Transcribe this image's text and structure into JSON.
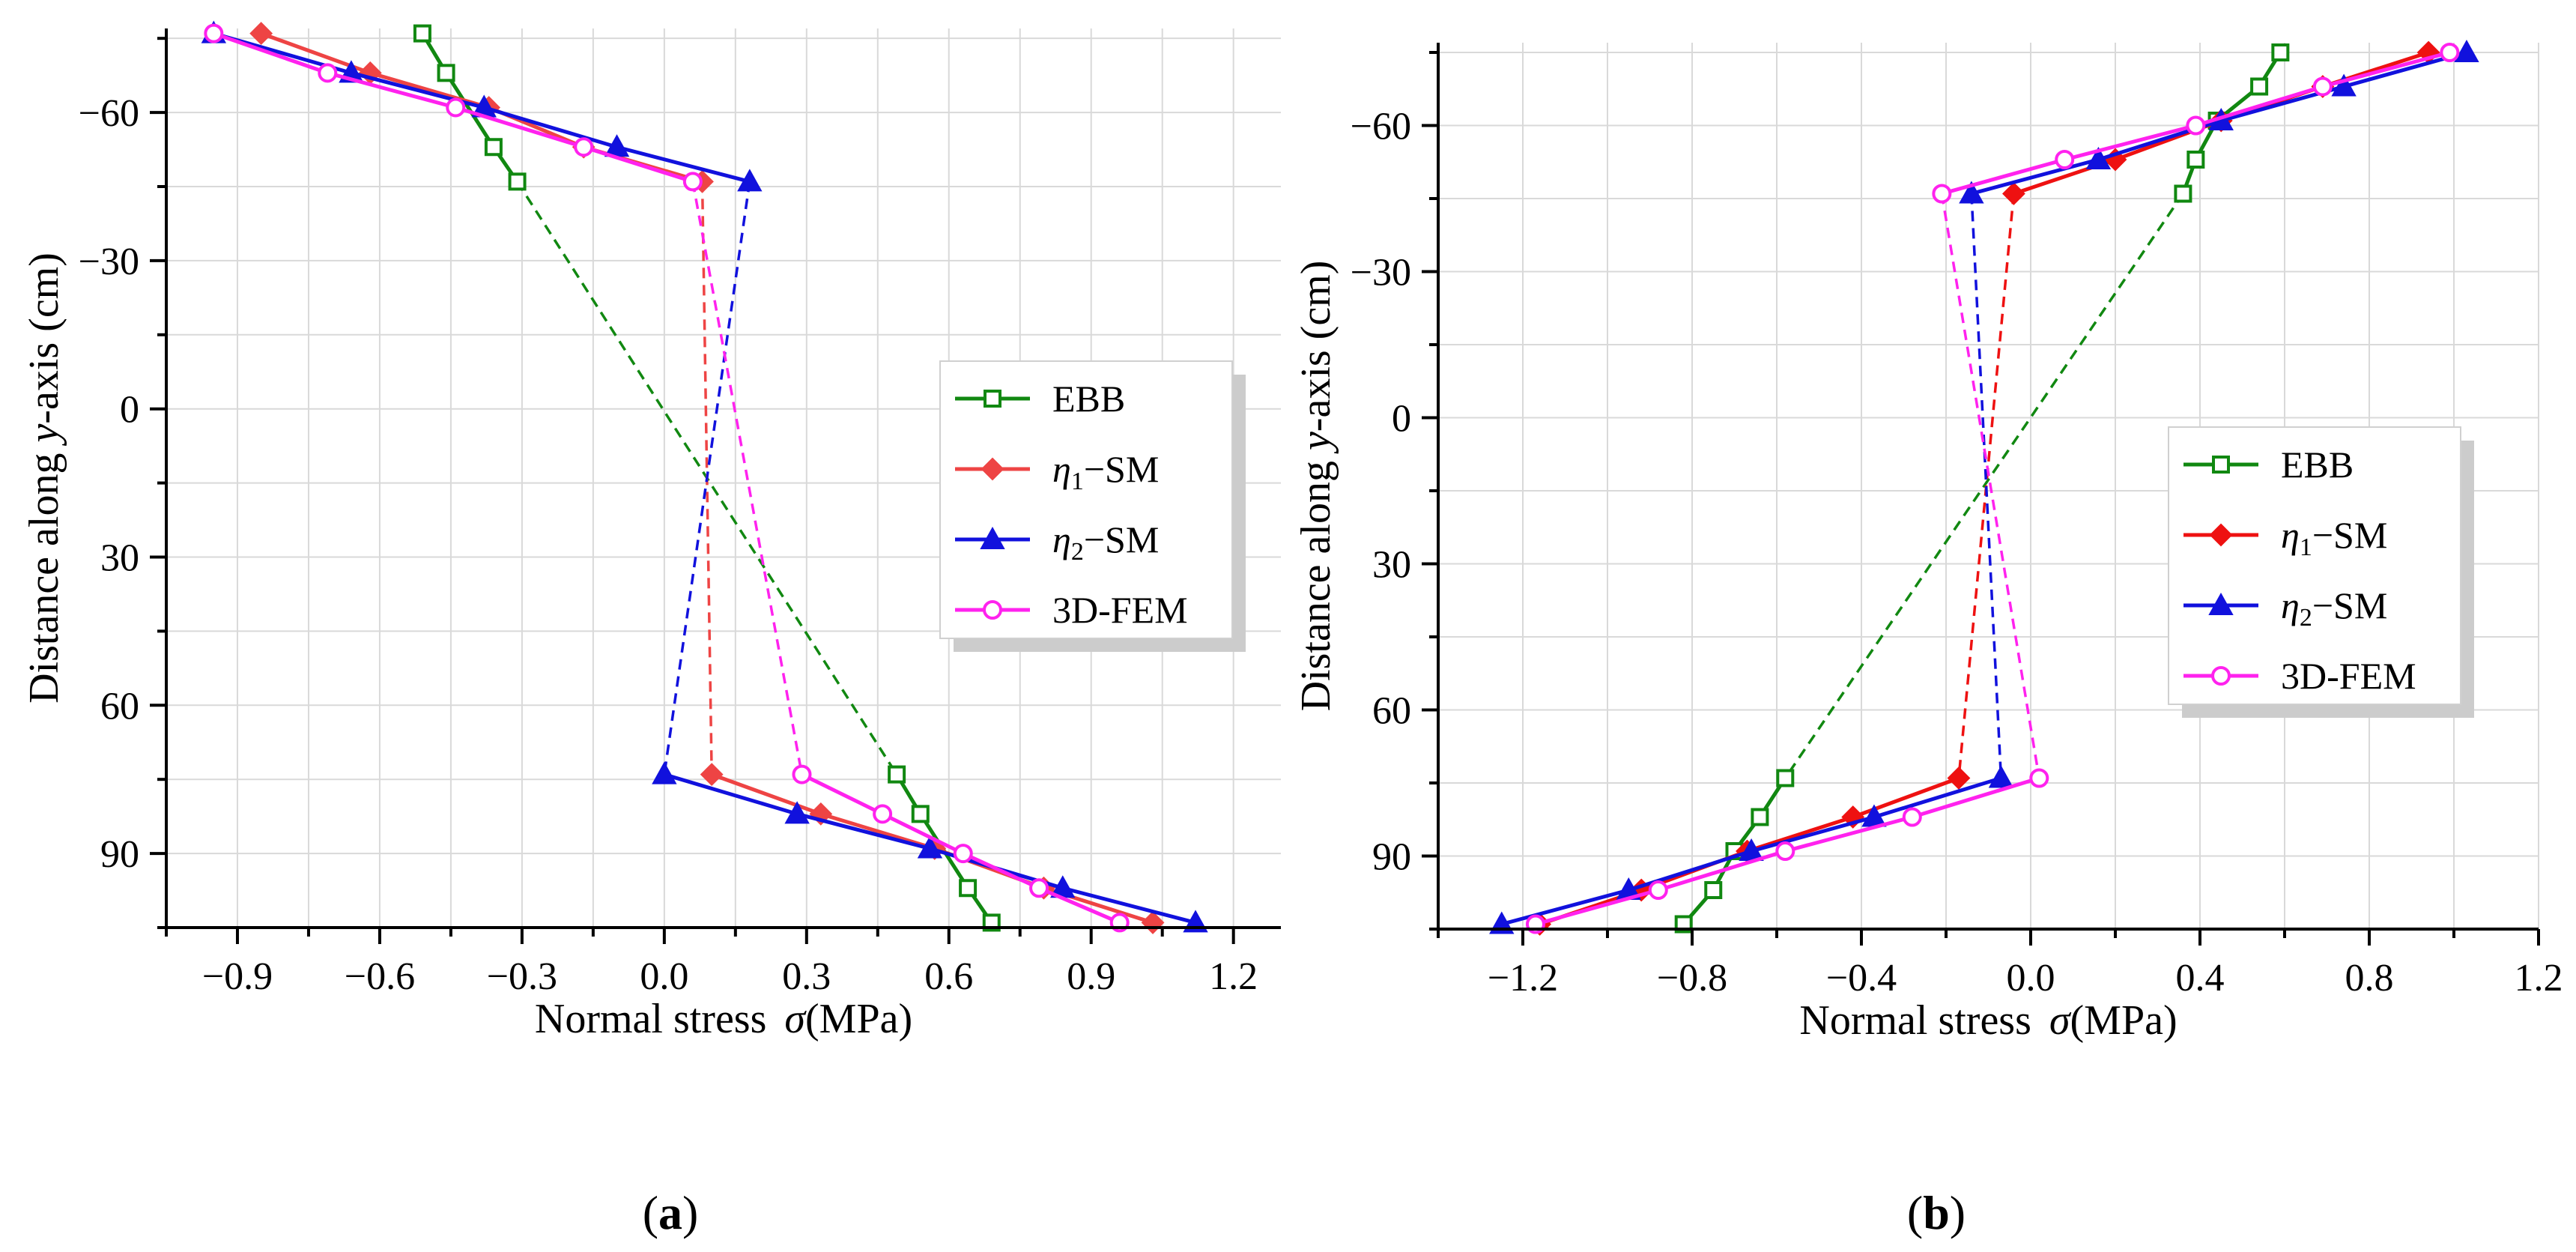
{
  "figure": {
    "panels": [
      {
        "label_open": "(",
        "label_letter": "a",
        "label_close": ")"
      },
      {
        "label_open": "(",
        "label_letter": "b",
        "label_close": ")"
      }
    ]
  },
  "chart_data": [
    {
      "type": "line",
      "panel": "a",
      "xlabel": "Normal stress",
      "xlabel_symbol": "σ",
      "xlabel_unit": "(MPa)",
      "ylabel_prefix": "Distance along ",
      "ylabel_var": "y",
      "ylabel_suffix": "-axis (cm)",
      "xlim": [
        -1.05,
        1.3
      ],
      "ylim": [
        105,
        -77
      ],
      "xticks": [
        -0.9,
        -0.6,
        -0.3,
        0.0,
        0.3,
        0.6,
        0.9,
        1.2
      ],
      "xtick_labels": [
        "−0.9",
        "−0.6",
        "−0.3",
        "0.0",
        "0.3",
        "0.6",
        "0.9",
        "1.2"
      ],
      "yticks": [
        -60,
        -30,
        0,
        30,
        60,
        90
      ],
      "ytick_labels": [
        "−60",
        "−30",
        "0",
        "30",
        "60",
        "90"
      ],
      "grid": true,
      "legend_position": "center-right",
      "series": [
        {
          "name": "EBB",
          "legend_greek": "",
          "legend_sub": "",
          "legend_text": "EBB",
          "color": "#118811",
          "marker": "square-open",
          "top": {
            "x": [
              -0.51,
              -0.46,
              -0.36,
              -0.31
            ],
            "y": [
              -76,
              -68,
              -53,
              -46
            ]
          },
          "bottom": {
            "x": [
              0.49,
              0.54,
              0.64,
              0.69
            ],
            "y": [
              74,
              82,
              97,
              104
            ]
          },
          "dash": {
            "x": [
              -0.31,
              0.49
            ],
            "y": [
              -46,
              74
            ]
          }
        },
        {
          "name": "η1−SM",
          "legend_greek": "η",
          "legend_sub": "1",
          "legend_text": "−SM",
          "color": "#ee4444",
          "marker": "diamond-filled",
          "top": {
            "x": [
              -0.85,
              -0.62,
              -0.37,
              -0.17,
              0.08
            ],
            "y": [
              -76,
              -68,
              -61,
              -53,
              -46
            ]
          },
          "bottom": {
            "x": [
              0.1,
              0.33,
              0.57,
              0.8,
              1.03
            ],
            "y": [
              74,
              82,
              89,
              97,
              104
            ]
          },
          "dash": {
            "x": [
              0.08,
              0.1
            ],
            "y": [
              -46,
              74
            ]
          }
        },
        {
          "name": "η2−SM",
          "legend_greek": "η",
          "legend_sub": "2",
          "legend_text": "−SM",
          "color": "#1111dd",
          "marker": "triangle-filled",
          "top": {
            "x": [
              -0.95,
              -0.66,
              -0.38,
              -0.1,
              0.18
            ],
            "y": [
              -76,
              -68,
              -61,
              -53,
              -46
            ]
          },
          "bottom": {
            "x": [
              0.0,
              0.28,
              0.56,
              0.84,
              1.12
            ],
            "y": [
              74,
              82,
              89,
              97,
              104
            ]
          },
          "dash": {
            "x": [
              0.18,
              0.0
            ],
            "y": [
              -46,
              74
            ]
          }
        },
        {
          "name": "3D-FEM",
          "legend_greek": "",
          "legend_sub": "",
          "legend_text": "3D-FEM",
          "color": "#ff22ee",
          "marker": "circle-open",
          "top": {
            "x": [
              -0.95,
              -0.71,
              -0.44,
              -0.17,
              0.06
            ],
            "y": [
              -76,
              -68,
              -61,
              -53,
              -46
            ]
          },
          "bottom": {
            "x": [
              0.29,
              0.46,
              0.63,
              0.79,
              0.96
            ],
            "y": [
              74,
              82,
              90,
              97,
              104
            ]
          },
          "dash": {
            "x": [
              0.06,
              0.29
            ],
            "y": [
              -46,
              74
            ]
          }
        }
      ]
    },
    {
      "type": "line",
      "panel": "b",
      "xlabel": "Normal stress",
      "xlabel_symbol": "σ",
      "xlabel_unit": "(MPa)",
      "ylabel_prefix": "Distance along ",
      "ylabel_var": "y",
      "ylabel_suffix": "-axis (cm)",
      "xlim": [
        -1.4,
        1.2
      ],
      "ylim": [
        105,
        -77
      ],
      "xticks": [
        -1.2,
        -0.8,
        -0.4,
        0.0,
        0.4,
        0.8,
        1.2
      ],
      "xtick_labels": [
        "−1.2",
        "−0.8",
        "−0.4",
        "0.0",
        "0.4",
        "0.8",
        "1.2"
      ],
      "yticks": [
        -60,
        -30,
        0,
        30,
        60,
        90
      ],
      "ytick_labels": [
        "−60",
        "−30",
        "0",
        "30",
        "60",
        "90"
      ],
      "grid": true,
      "legend_position": "right",
      "series": [
        {
          "name": "EBB",
          "legend_greek": "",
          "legend_sub": "",
          "legend_text": "EBB",
          "color": "#118811",
          "marker": "square-open",
          "top": {
            "x": [
              0.59,
              0.54,
              0.44,
              0.39,
              0.36
            ],
            "y": [
              -75,
              -68,
              -61,
              -53,
              -46
            ]
          },
          "bottom": {
            "x": [
              -0.58,
              -0.64,
              -0.7,
              -0.75,
              -0.82
            ],
            "y": [
              74,
              82,
              89,
              97,
              104
            ]
          },
          "dash": {
            "x": [
              0.36,
              -0.58
            ],
            "y": [
              -46,
              74
            ]
          }
        },
        {
          "name": "η1−SM",
          "legend_greek": "η",
          "legend_sub": "1",
          "legend_text": "−SM",
          "color": "#ee1111",
          "marker": "diamond-filled",
          "top": {
            "x": [
              0.94,
              0.69,
              0.45,
              0.2,
              -0.04
            ],
            "y": [
              -75,
              -68,
              -61,
              -53,
              -46
            ]
          },
          "bottom": {
            "x": [
              -0.17,
              -0.42,
              -0.67,
              -0.92,
              -1.16
            ],
            "y": [
              74,
              82,
              89,
              97,
              104
            ]
          },
          "dash": {
            "x": [
              -0.04,
              -0.17
            ],
            "y": [
              -46,
              74
            ]
          }
        },
        {
          "name": "η2−SM",
          "legend_greek": "η",
          "legend_sub": "2",
          "legend_text": "−SM",
          "color": "#1111dd",
          "marker": "triangle-filled",
          "top": {
            "x": [
              1.03,
              0.74,
              0.45,
              0.16,
              -0.14
            ],
            "y": [
              -75,
              -68,
              -61,
              -53,
              -46
            ]
          },
          "bottom": {
            "x": [
              -0.07,
              -0.37,
              -0.66,
              -0.95,
              -1.25
            ],
            "y": [
              74,
              82,
              89,
              97,
              104
            ]
          },
          "dash": {
            "x": [
              -0.14,
              -0.07
            ],
            "y": [
              -46,
              74
            ]
          }
        },
        {
          "name": "3D-FEM",
          "legend_greek": "",
          "legend_sub": "",
          "legend_text": "3D-FEM",
          "color": "#ff22ee",
          "marker": "circle-open",
          "top": {
            "x": [
              0.99,
              0.69,
              0.39,
              0.08,
              -0.21
            ],
            "y": [
              -75,
              -68,
              -60,
              -53,
              -46
            ]
          },
          "bottom": {
            "x": [
              0.02,
              -0.28,
              -0.58,
              -0.88,
              -1.17
            ],
            "y": [
              74,
              82,
              89,
              97,
              104
            ]
          },
          "dash": {
            "x": [
              -0.21,
              0.02
            ],
            "y": [
              -46,
              74
            ]
          }
        }
      ]
    }
  ]
}
